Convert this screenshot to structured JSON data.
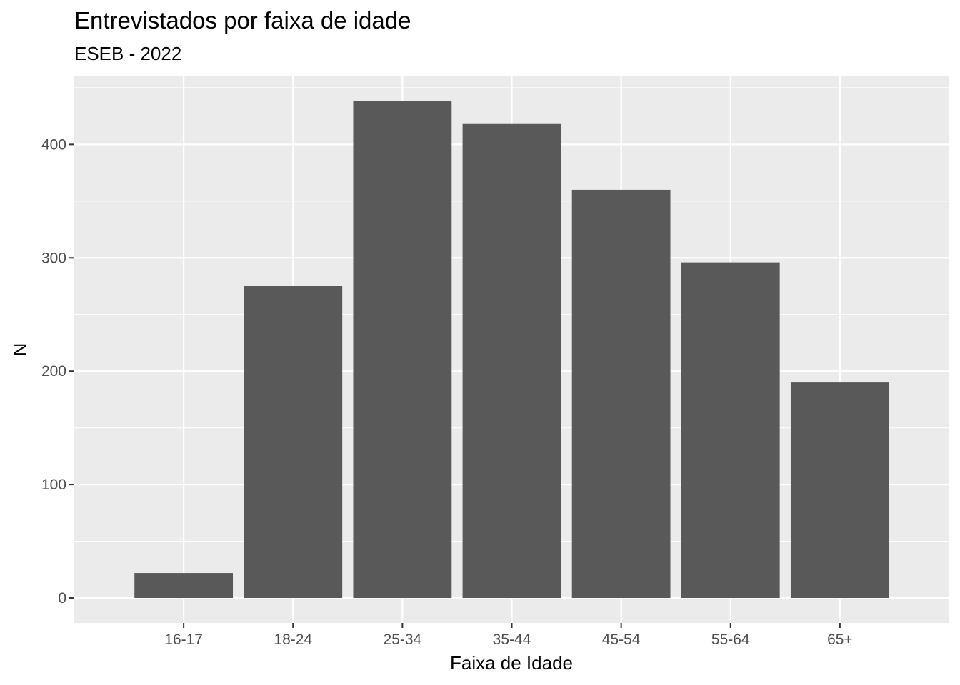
{
  "chart_data": {
    "type": "bar",
    "title": "Entrevistados por faixa de idade",
    "subtitle": "ESEB - 2022",
    "xlabel": "Faixa de Idade",
    "ylabel": "N",
    "categories": [
      "16-17",
      "18-24",
      "25-34",
      "35-44",
      "45-54",
      "55-64",
      "65+"
    ],
    "values": [
      22,
      275,
      438,
      418,
      360,
      296,
      190
    ],
    "ylim": [
      -22,
      460
    ],
    "yticks": [
      0,
      100,
      200,
      300,
      400
    ],
    "ytick_labels": [
      "0",
      "100",
      "200",
      "300",
      "400"
    ],
    "grid": true,
    "legend": "none",
    "colors": {
      "bar": "#595959",
      "panel": "#ebebeb",
      "grid_major": "#ffffff",
      "tick": "#333333",
      "tick_label": "#4d4d4d"
    }
  }
}
